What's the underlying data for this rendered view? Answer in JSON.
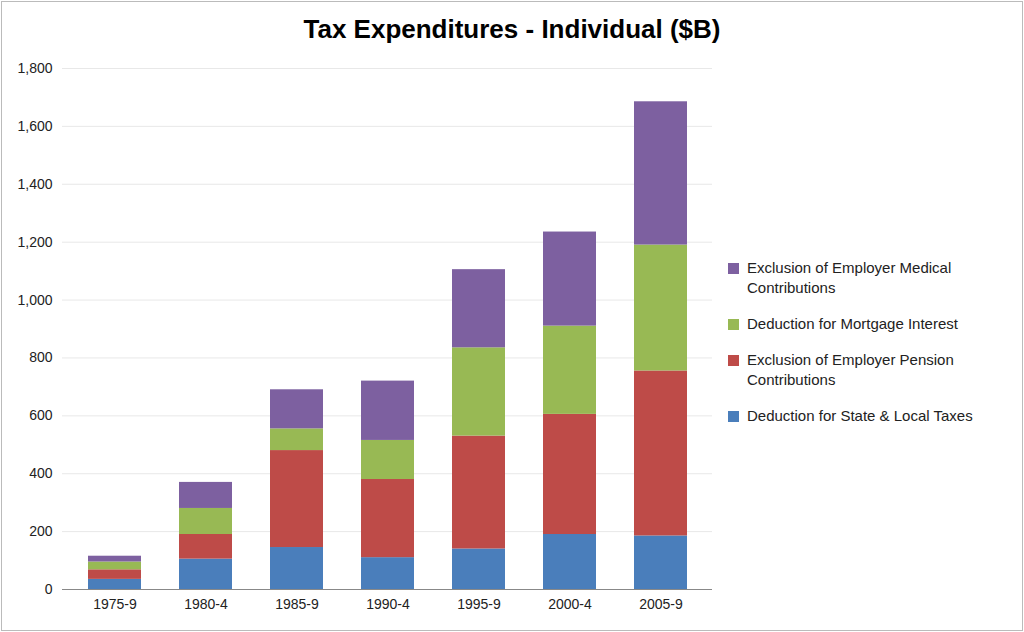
{
  "chart_data": {
    "type": "bar",
    "stacked": true,
    "title": "Tax Expenditures - Individual ($B)",
    "categories": [
      "1975-9",
      "1980-4",
      "1985-9",
      "1990-4",
      "1995-9",
      "2000-4",
      "2005-9"
    ],
    "series": [
      {
        "name": "Deduction for State & Local Taxes",
        "color": "#4a7ebb",
        "values": [
          35,
          105,
          145,
          110,
          140,
          190,
          185
        ]
      },
      {
        "name": "Exclusion of Employer Pension Contributions",
        "color": "#be4b48",
        "values": [
          33,
          85,
          335,
          270,
          390,
          415,
          570
        ]
      },
      {
        "name": "Deduction for Mortgage Interest",
        "color": "#98b954",
        "values": [
          27,
          90,
          75,
          135,
          305,
          305,
          435
        ]
      },
      {
        "name": "Exclusion of Employer Medical Contributions",
        "color": "#7d60a0",
        "values": [
          20,
          90,
          135,
          205,
          270,
          325,
          495
        ]
      }
    ],
    "ylim": [
      0,
      1800
    ],
    "yticks": [
      0,
      200,
      400,
      600,
      800,
      1000,
      1200,
      1400,
      1600,
      1800
    ],
    "grid": true,
    "legend": "right"
  }
}
